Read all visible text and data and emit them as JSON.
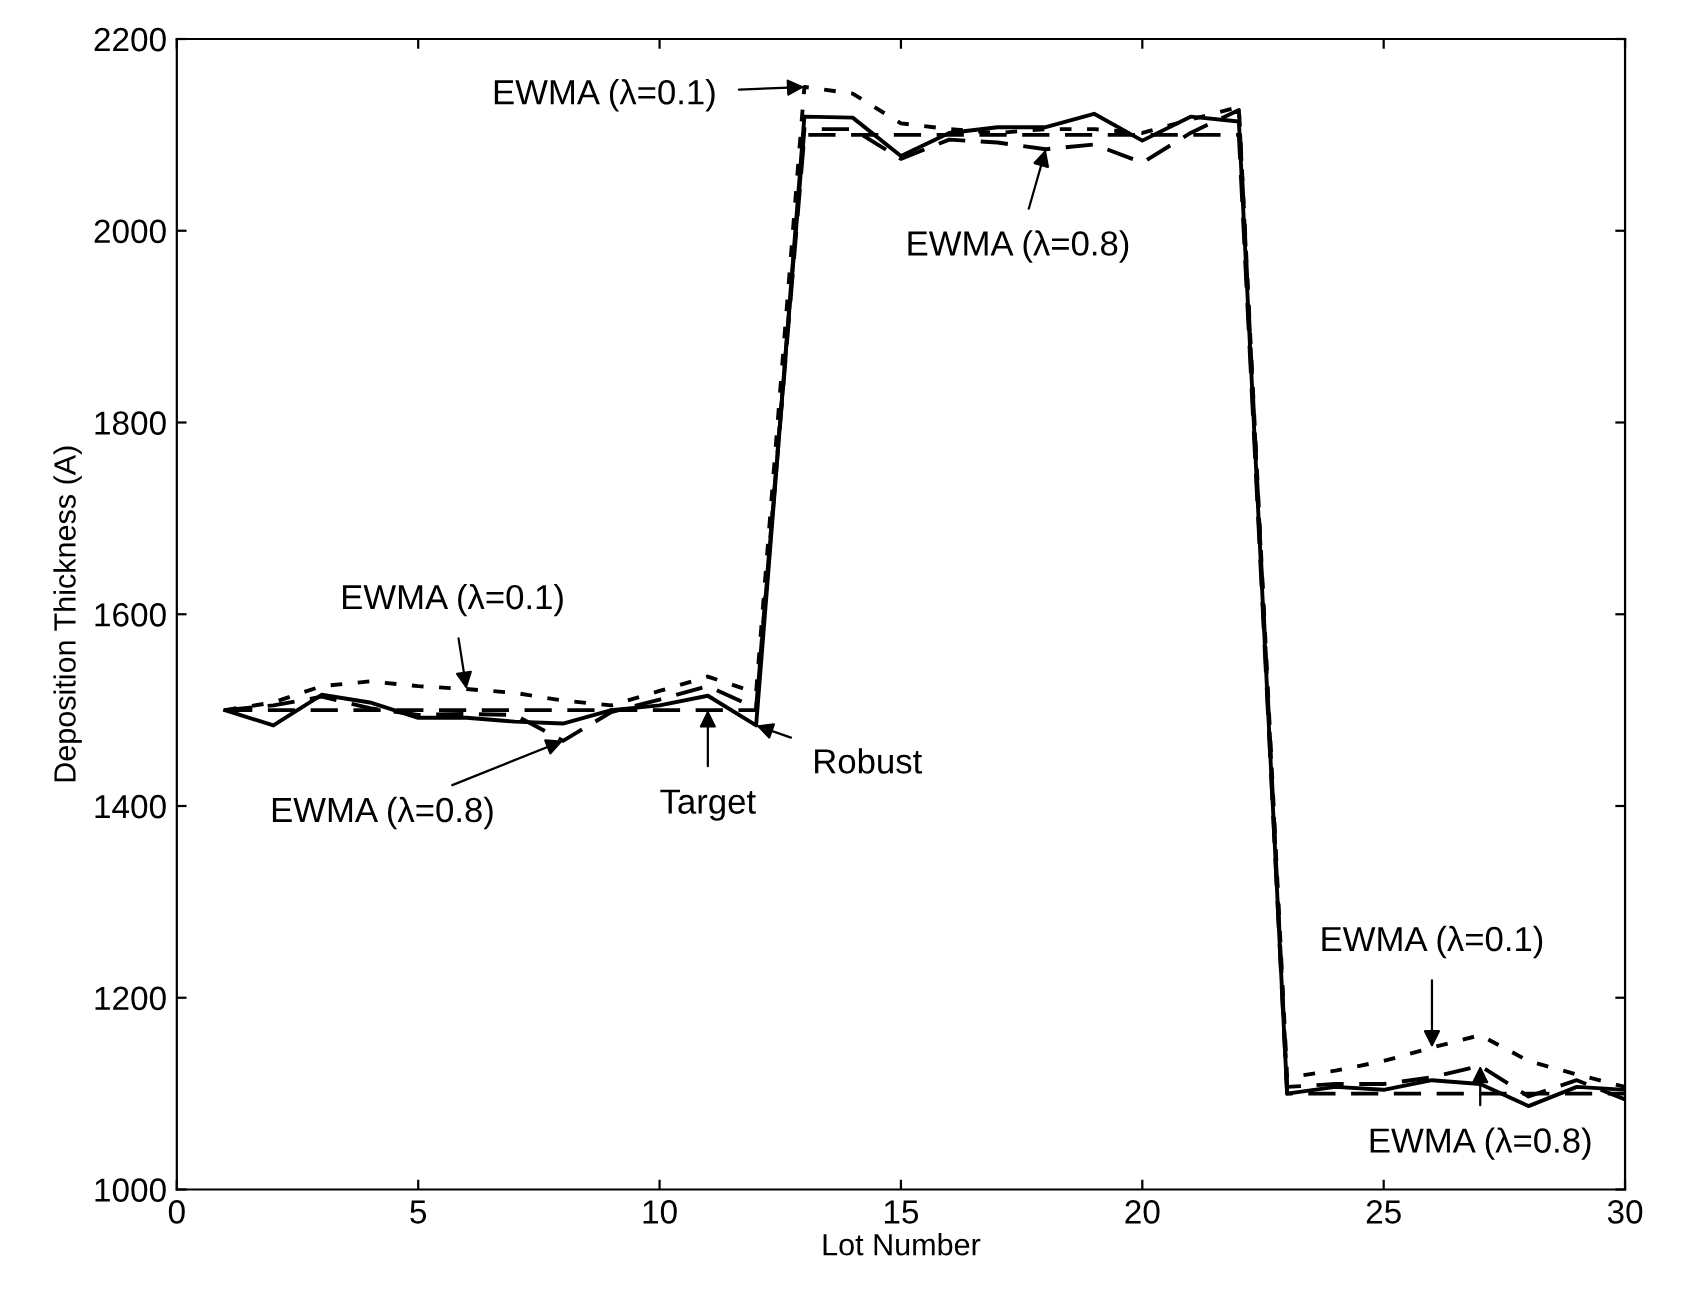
{
  "chart_data": {
    "type": "line",
    "xlabel": "Lot Number",
    "ylabel": "Deposition Thickness (A)",
    "x": [
      1,
      2,
      3,
      4,
      5,
      6,
      7,
      8,
      9,
      10,
      11,
      12,
      13,
      14,
      15,
      16,
      17,
      18,
      19,
      20,
      21,
      22,
      23,
      24,
      25,
      26,
      27,
      28,
      29,
      30
    ],
    "xlim": [
      0,
      30
    ],
    "xticks": [
      0,
      5,
      10,
      15,
      20,
      25,
      30
    ],
    "ylim": [
      1000,
      2200
    ],
    "yticks": [
      1000,
      1200,
      1400,
      1600,
      1800,
      2000,
      2200
    ],
    "grid": false,
    "legend": false,
    "series": [
      {
        "color": "#000000",
        "line_style": "dashed",
        "values": [
          1500,
          1500,
          1500,
          1500,
          1500,
          1500,
          1500,
          1500,
          1500,
          1500,
          1500,
          1500,
          2100,
          2100,
          2100,
          2100,
          2100,
          2100,
          2100,
          2100,
          2100,
          2100,
          1100,
          1100,
          1100,
          1100,
          1100,
          1100,
          1100,
          1100
        ]
      },
      {
        "color": "#000000",
        "line_style": "solid",
        "values": [
          1500,
          1484,
          1516,
          1508,
          1492,
          1492,
          1488,
          1486,
          1500,
          1505,
          1515,
          1484,
          2119,
          2118,
          2078,
          2102,
          2108,
          2108,
          2122,
          2094,
          2119,
          2114,
          1100,
          1107,
          1104,
          1114,
          1110,
          1087,
          1107,
          1104
        ]
      },
      {
        "color": "#000000",
        "line_style": "dotted",
        "values": [
          1500,
          1508,
          1525,
          1530,
          1525,
          1522,
          1518,
          1510,
          1505,
          1520,
          1535,
          1518,
          2150,
          2143,
          2112,
          2106,
          2102,
          2106,
          2106,
          2102,
          2116,
          2129,
          1117,
          1124,
          1134,
          1148,
          1161,
          1134,
          1120,
          1107
        ]
      },
      {
        "color": "#000000",
        "line_style": "dashed",
        "values": [
          1500,
          1505,
          1514,
          1502,
          1495,
          1496,
          1495,
          1468,
          1498,
          1511,
          1525,
          1502,
          2106,
          2106,
          2075,
          2095,
          2092,
          2085,
          2090,
          2071,
          2102,
          2126,
          1107,
          1110,
          1110,
          1117,
          1129,
          1097,
          1114,
          1094
        ]
      }
    ],
    "annotations": [
      {
        "text": "EWMA (λ=0.1)",
        "x": 13,
        "y": 2150
      },
      {
        "text": "EWMA (λ=0.8)",
        "x": 18,
        "y": 2085
      },
      {
        "text": "EWMA (λ=0.1)",
        "x": 6,
        "y": 1522
      },
      {
        "text": "EWMA (λ=0.8)",
        "x": 8,
        "y": 1468
      },
      {
        "text": "Target",
        "x": 11,
        "y": 1500
      },
      {
        "text": "Robust",
        "x": 12,
        "y": 1484
      },
      {
        "text": "EWMA (λ=0.1)",
        "x": 26,
        "y": 1148
      },
      {
        "text": "EWMA (λ=0.8)",
        "x": 27,
        "y": 1129
      }
    ]
  }
}
